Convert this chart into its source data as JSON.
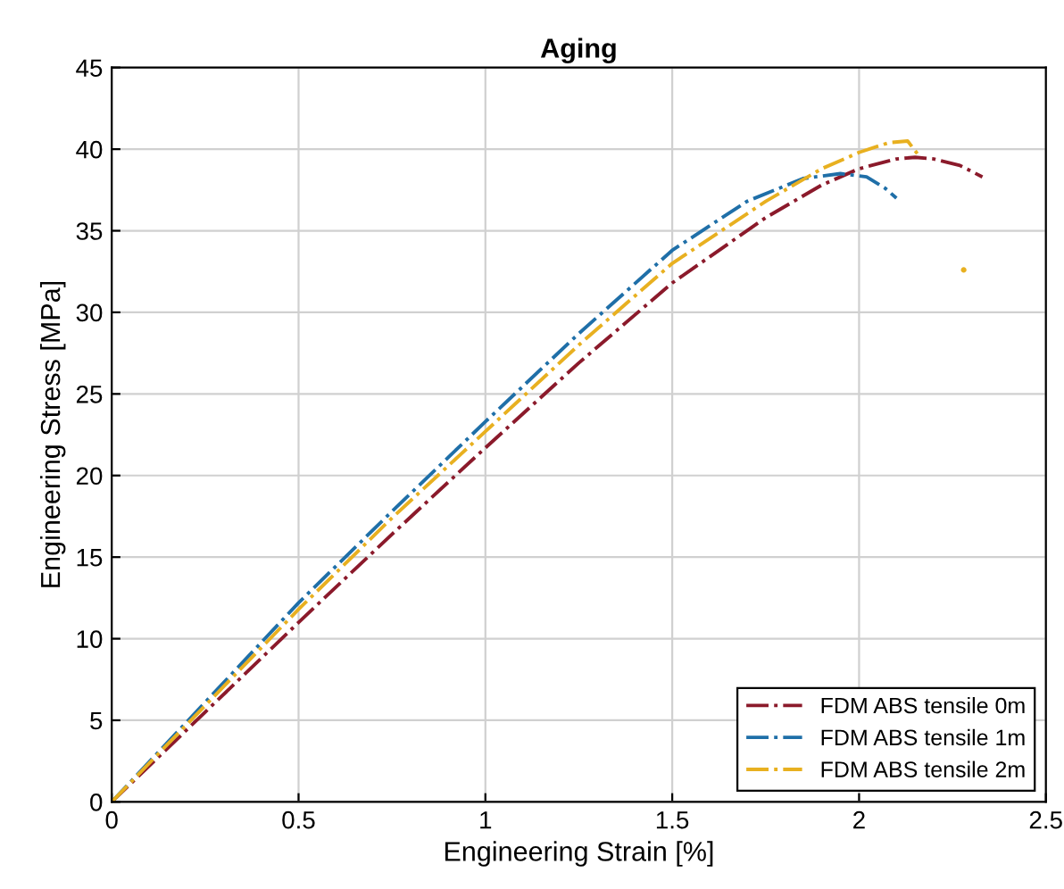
{
  "chart_data": {
    "type": "line",
    "title": "Aging",
    "xlabel": "Engineering Strain [%]",
    "ylabel": "Engineering Stress [MPa]",
    "xlim": [
      0,
      2.5
    ],
    "xticks": [
      0,
      0.5,
      1,
      1.5,
      2,
      2.5
    ],
    "ylim": [
      0,
      45
    ],
    "yticks": [
      0,
      5,
      10,
      15,
      20,
      25,
      30,
      35,
      40,
      45
    ],
    "grid": true,
    "legend": "bottom right",
    "line_style": "dashed",
    "marker": "none",
    "series": [
      {
        "name": "FDM ABS tensile 0m",
        "color": "#8b1a2b",
        "x": [
          0,
          0.25,
          0.5,
          0.75,
          1.0,
          1.25,
          1.5,
          1.75,
          1.9,
          2.0,
          2.1,
          2.15,
          2.2,
          2.27,
          2.33
        ],
        "values": [
          0,
          5.5,
          11.0,
          16.4,
          21.7,
          26.9,
          31.8,
          35.8,
          37.8,
          38.8,
          39.4,
          39.5,
          39.4,
          39.0,
          38.3
        ]
      },
      {
        "name": "FDM ABS tensile 1m",
        "color": "#1f6fa8",
        "x": [
          0,
          0.25,
          0.5,
          0.75,
          1.0,
          1.25,
          1.5,
          1.7,
          1.85,
          1.95,
          2.02,
          2.07,
          2.1
        ],
        "values": [
          0,
          6.1,
          12.2,
          17.8,
          23.3,
          28.7,
          33.8,
          36.8,
          38.2,
          38.5,
          38.3,
          37.6,
          37.0
        ]
      },
      {
        "name": "FDM ABS tensile 2m",
        "color": "#e8b020",
        "x": [
          0,
          0.25,
          0.5,
          0.75,
          1.0,
          1.25,
          1.5,
          1.75,
          1.9,
          2.0,
          2.08,
          2.13,
          2.16,
          2.2,
          2.28
        ],
        "values": [
          0,
          5.9,
          11.8,
          17.4,
          22.7,
          28.0,
          33.0,
          36.8,
          38.8,
          39.8,
          40.4,
          40.5,
          39.6,
          null,
          32.6
        ]
      }
    ]
  }
}
